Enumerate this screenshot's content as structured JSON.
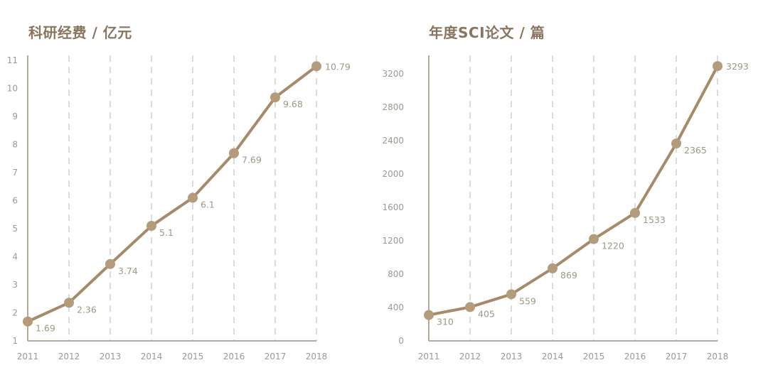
{
  "colors": {
    "line": "#a78a6a",
    "marker": "#b49b7a",
    "axis": "#b3aa9a",
    "grid": "#c4c4c4",
    "title": "#8a7560",
    "label": "#9a9a92"
  },
  "charts": [
    {
      "title": "科研经费 / 亿元"
    },
    {
      "title": "年度SCI论文 / 篇"
    }
  ],
  "chart_data": [
    {
      "type": "line",
      "title": "科研经费 / 亿元",
      "xlabel": "",
      "ylabel": "亿元",
      "categories": [
        "2011",
        "2012",
        "2013",
        "2014",
        "2015",
        "2016",
        "2017",
        "2018"
      ],
      "series": [
        {
          "name": "科研经费",
          "values": [
            1.69,
            2.36,
            3.74,
            5.1,
            6.1,
            7.69,
            9.68,
            10.79
          ]
        }
      ],
      "data_labels": [
        "1.69",
        "2.36",
        "3.74",
        "5.1",
        "6.1",
        "7.69",
        "9.68",
        "10.79"
      ],
      "yticks": [
        1,
        2,
        3,
        4,
        5,
        6,
        7,
        8,
        9,
        10,
        11
      ],
      "ylim": [
        1,
        11
      ],
      "grid": "vertical dashed",
      "legend": null
    },
    {
      "type": "line",
      "title": "年度SCI论文 / 篇",
      "xlabel": "",
      "ylabel": "篇",
      "categories": [
        "2011",
        "2012",
        "2013",
        "2014",
        "2015",
        "2016",
        "2017",
        "2018"
      ],
      "series": [
        {
          "name": "年度SCI论文",
          "values": [
            310,
            405,
            559,
            869,
            1220,
            1533,
            2365,
            3293
          ]
        }
      ],
      "data_labels": [
        "310",
        "405",
        "559",
        "869",
        "1220",
        "1533",
        "2365",
        "3293"
      ],
      "yticks": [
        0,
        400,
        800,
        1200,
        1600,
        2000,
        2400,
        2800,
        3200
      ],
      "ylim": [
        0,
        3420
      ],
      "grid": "vertical dashed",
      "legend": null
    }
  ]
}
